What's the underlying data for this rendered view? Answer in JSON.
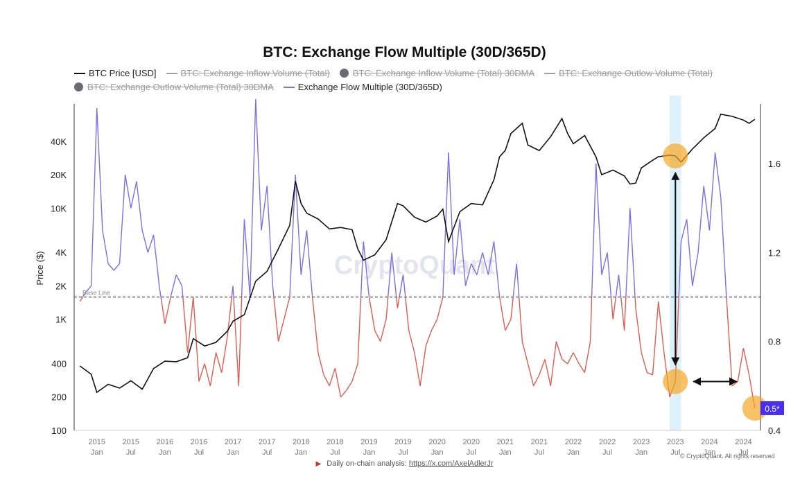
{
  "title": "BTC: Exchange Flow Multiple (30D/365D)",
  "legend": [
    {
      "label": "BTC Price [USD]",
      "marker": "line",
      "color": "#111111",
      "active": true
    },
    {
      "label": "BTC: Exchange Inflow Volume (Total)",
      "marker": "line",
      "color": "#9e9e9e",
      "active": false
    },
    {
      "label": "BTC: Exchange Inflow Volume (Total) 30DMA",
      "marker": "dot",
      "color": "#6b6b74",
      "active": false
    },
    {
      "label": "BTC: Exchange Outlow Volume (Total)",
      "marker": "line",
      "color": "#9e9e9e",
      "active": false
    },
    {
      "label": "BTC: Exchange Outlow Volume (Total) 30DMA",
      "marker": "dot",
      "color": "#6b6b74",
      "active": false
    },
    {
      "label": "Exchange Flow Multiple (30D/365D)",
      "marker": "line",
      "color": "#7b6ee8",
      "active": true
    }
  ],
  "chart_data": {
    "type": "line",
    "title": "BTC: Exchange Flow Multiple (30D/365D)",
    "x_ticks": [
      {
        "year": "2015",
        "sub": "Jan"
      },
      {
        "year": "2015",
        "sub": "Jul"
      },
      {
        "year": "2016",
        "sub": "Jan"
      },
      {
        "year": "2016",
        "sub": "Jul"
      },
      {
        "year": "2017",
        "sub": "Jan"
      },
      {
        "year": "2017",
        "sub": "Jul"
      },
      {
        "year": "2018",
        "sub": "Jan"
      },
      {
        "year": "2018",
        "sub": "Jul"
      },
      {
        "year": "2019",
        "sub": "Jan"
      },
      {
        "year": "2019",
        "sub": "Jul"
      },
      {
        "year": "2020",
        "sub": "Jan"
      },
      {
        "year": "2020",
        "sub": "Jul"
      },
      {
        "year": "2021",
        "sub": "Jan"
      },
      {
        "year": "2021",
        "sub": "Jul"
      },
      {
        "year": "2022",
        "sub": "Jan"
      },
      {
        "year": "2022",
        "sub": "Jul"
      },
      {
        "year": "2023",
        "sub": "Jan"
      },
      {
        "year": "2023",
        "sub": "Jul"
      },
      {
        "year": "2024",
        "sub": "Jan"
      },
      {
        "year": "2024",
        "sub": "Jul"
      }
    ],
    "x_range": [
      "2014-09",
      "2024-10"
    ],
    "y_left": {
      "label": "Price ($)",
      "scale": "log",
      "range": [
        100,
        100000
      ],
      "ticks": [
        "100",
        "200",
        "400",
        "1K",
        "2K",
        "4K",
        "10K",
        "20K",
        "40K"
      ],
      "tick_values": [
        100,
        200,
        400,
        1000,
        2000,
        4000,
        10000,
        20000,
        40000
      ]
    },
    "y_right": {
      "range": [
        0.4,
        1.9
      ],
      "ticks": [
        "0.4",
        "0.8",
        "1.2",
        "1.6"
      ],
      "tick_values": [
        0.4,
        0.8,
        1.2,
        1.6
      ]
    },
    "base_line": {
      "label": "Base Line",
      "value": 1.0
    },
    "current_value_label": "0.5*",
    "series": [
      {
        "name": "BTC Price [USD]",
        "axis": "left",
        "color": "#111111",
        "points": [
          [
            "2014-10",
            380
          ],
          [
            "2014-12",
            320
          ],
          [
            "2015-01",
            220
          ],
          [
            "2015-03",
            260
          ],
          [
            "2015-05",
            240
          ],
          [
            "2015-07",
            280
          ],
          [
            "2015-09",
            235
          ],
          [
            "2015-11",
            360
          ],
          [
            "2016-01",
            420
          ],
          [
            "2016-03",
            415
          ],
          [
            "2016-05",
            450
          ],
          [
            "2016-06",
            670
          ],
          [
            "2016-08",
            575
          ],
          [
            "2016-10",
            620
          ],
          [
            "2016-12",
            780
          ],
          [
            "2017-01",
            960
          ],
          [
            "2017-03",
            1100
          ],
          [
            "2017-05",
            2200
          ],
          [
            "2017-07",
            2700
          ],
          [
            "2017-09",
            4300
          ],
          [
            "2017-11",
            7000
          ],
          [
            "2017-12",
            17500
          ],
          [
            "2018-01",
            11000
          ],
          [
            "2018-02",
            9000
          ],
          [
            "2018-04",
            8000
          ],
          [
            "2018-06",
            6500
          ],
          [
            "2018-08",
            6700
          ],
          [
            "2018-10",
            6400
          ],
          [
            "2018-11",
            4300
          ],
          [
            "2018-12",
            3400
          ],
          [
            "2019-02",
            3800
          ],
          [
            "2019-04",
            5200
          ],
          [
            "2019-06",
            11000
          ],
          [
            "2019-07",
            10500
          ],
          [
            "2019-09",
            8300
          ],
          [
            "2019-11",
            7500
          ],
          [
            "2020-01",
            8500
          ],
          [
            "2020-02",
            9800
          ],
          [
            "2020-03",
            5000
          ],
          [
            "2020-05",
            9300
          ],
          [
            "2020-07",
            11000
          ],
          [
            "2020-09",
            10700
          ],
          [
            "2020-11",
            18000
          ],
          [
            "2020-12",
            29000
          ],
          [
            "2021-01",
            33000
          ],
          [
            "2021-02",
            47000
          ],
          [
            "2021-04",
            58000
          ],
          [
            "2021-05",
            37000
          ],
          [
            "2021-07",
            33000
          ],
          [
            "2021-09",
            44000
          ],
          [
            "2021-11",
            64000
          ],
          [
            "2021-12",
            47000
          ],
          [
            "2022-01",
            38000
          ],
          [
            "2022-03",
            45000
          ],
          [
            "2022-05",
            29000
          ],
          [
            "2022-06",
            20000
          ],
          [
            "2022-08",
            22000
          ],
          [
            "2022-10",
            19500
          ],
          [
            "2022-11",
            16500
          ],
          [
            "2022-12",
            16800
          ],
          [
            "2023-01",
            23000
          ],
          [
            "2023-03",
            27000
          ],
          [
            "2023-04",
            29000
          ],
          [
            "2023-06",
            30000
          ],
          [
            "2023-07",
            29500
          ],
          [
            "2023-08",
            26000
          ],
          [
            "2023-10",
            34000
          ],
          [
            "2023-12",
            43000
          ],
          [
            "2024-02",
            52000
          ],
          [
            "2024-03",
            70000
          ],
          [
            "2024-05",
            67000
          ],
          [
            "2024-07",
            62000
          ],
          [
            "2024-08",
            58000
          ],
          [
            "2024-09",
            63000
          ]
        ]
      },
      {
        "name": "Exchange Flow Multiple (30D/365D)",
        "axis": "right",
        "color_above": "#7b6ee8",
        "color_below": "#e15b4f",
        "points": [
          [
            "2014-10",
            0.98
          ],
          [
            "2014-11",
            1.02
          ],
          [
            "2014-12",
            1.05
          ],
          [
            "2015-01",
            1.85
          ],
          [
            "2015-02",
            1.3
          ],
          [
            "2015-03",
            1.15
          ],
          [
            "2015-04",
            1.12
          ],
          [
            "2015-05",
            1.15
          ],
          [
            "2015-06",
            1.55
          ],
          [
            "2015-07",
            1.4
          ],
          [
            "2015-08",
            1.52
          ],
          [
            "2015-09",
            1.3
          ],
          [
            "2015-10",
            1.2
          ],
          [
            "2015-11",
            1.28
          ],
          [
            "2015-12",
            1.05
          ],
          [
            "2016-01",
            0.88
          ],
          [
            "2016-02",
            1.0
          ],
          [
            "2016-03",
            1.1
          ],
          [
            "2016-04",
            1.05
          ],
          [
            "2016-05",
            0.75
          ],
          [
            "2016-06",
            1.0
          ],
          [
            "2016-07",
            0.62
          ],
          [
            "2016-08",
            0.7
          ],
          [
            "2016-09",
            0.6
          ],
          [
            "2016-10",
            0.75
          ],
          [
            "2016-11",
            0.66
          ],
          [
            "2016-12",
            0.82
          ],
          [
            "2017-01",
            1.05
          ],
          [
            "2017-02",
            0.6
          ],
          [
            "2017-03",
            1.35
          ],
          [
            "2017-04",
            1.0
          ],
          [
            "2017-05",
            1.89
          ],
          [
            "2017-06",
            1.3
          ],
          [
            "2017-07",
            1.5
          ],
          [
            "2017-08",
            1.05
          ],
          [
            "2017-09",
            0.8
          ],
          [
            "2017-10",
            0.9
          ],
          [
            "2017-11",
            1.0
          ],
          [
            "2017-12",
            1.55
          ],
          [
            "2018-01",
            1.1
          ],
          [
            "2018-02",
            1.3
          ],
          [
            "2018-03",
            1.0
          ],
          [
            "2018-04",
            0.75
          ],
          [
            "2018-05",
            0.65
          ],
          [
            "2018-06",
            0.6
          ],
          [
            "2018-07",
            0.68
          ],
          [
            "2018-08",
            0.55
          ],
          [
            "2018-09",
            0.58
          ],
          [
            "2018-10",
            0.62
          ],
          [
            "2018-11",
            0.7
          ],
          [
            "2018-12",
            1.25
          ],
          [
            "2019-01",
            1.0
          ],
          [
            "2019-02",
            0.85
          ],
          [
            "2019-03",
            0.8
          ],
          [
            "2019-04",
            0.9
          ],
          [
            "2019-05",
            1.2
          ],
          [
            "2019-06",
            0.95
          ],
          [
            "2019-07",
            1.1
          ],
          [
            "2019-08",
            0.85
          ],
          [
            "2019-09",
            0.75
          ],
          [
            "2019-10",
            0.6
          ],
          [
            "2019-11",
            0.78
          ],
          [
            "2019-12",
            0.85
          ],
          [
            "2020-01",
            0.9
          ],
          [
            "2020-02",
            1.0
          ],
          [
            "2020-03",
            1.65
          ],
          [
            "2020-04",
            1.1
          ],
          [
            "2020-05",
            1.35
          ],
          [
            "2020-06",
            1.05
          ],
          [
            "2020-07",
            1.15
          ],
          [
            "2020-08",
            1.1
          ],
          [
            "2020-09",
            1.2
          ],
          [
            "2020-10",
            1.1
          ],
          [
            "2020-11",
            1.25
          ],
          [
            "2020-12",
            1.0
          ],
          [
            "2021-01",
            0.85
          ],
          [
            "2021-02",
            0.9
          ],
          [
            "2021-03",
            1.15
          ],
          [
            "2021-04",
            0.8
          ],
          [
            "2021-05",
            0.7
          ],
          [
            "2021-06",
            0.6
          ],
          [
            "2021-07",
            0.65
          ],
          [
            "2021-08",
            0.72
          ],
          [
            "2021-09",
            0.6
          ],
          [
            "2021-10",
            0.8
          ],
          [
            "2021-11",
            0.72
          ],
          [
            "2021-12",
            0.7
          ],
          [
            "2022-01",
            0.75
          ],
          [
            "2022-02",
            0.7
          ],
          [
            "2022-03",
            0.66
          ],
          [
            "2022-04",
            0.8
          ],
          [
            "2022-05",
            1.6
          ],
          [
            "2022-06",
            1.1
          ],
          [
            "2022-07",
            1.2
          ],
          [
            "2022-08",
            0.9
          ],
          [
            "2022-09",
            1.1
          ],
          [
            "2022-10",
            0.85
          ],
          [
            "2022-11",
            1.4
          ],
          [
            "2022-12",
            0.95
          ],
          [
            "2023-01",
            0.75
          ],
          [
            "2023-02",
            0.66
          ],
          [
            "2023-03",
            0.65
          ],
          [
            "2023-04",
            0.98
          ],
          [
            "2023-05",
            0.75
          ],
          [
            "2023-06",
            0.55
          ],
          [
            "2023-07",
            0.62
          ],
          [
            "2023-08",
            1.25
          ],
          [
            "2023-09",
            1.35
          ],
          [
            "2023-10",
            1.05
          ],
          [
            "2023-11",
            1.2
          ],
          [
            "2023-12",
            1.5
          ],
          [
            "2024-01",
            1.3
          ],
          [
            "2024-02",
            1.65
          ],
          [
            "2024-03",
            1.45
          ],
          [
            "2024-04",
            1.0
          ],
          [
            "2024-05",
            0.6
          ],
          [
            "2024-06",
            0.62
          ],
          [
            "2024-07",
            0.77
          ],
          [
            "2024-08",
            0.65
          ],
          [
            "2024-09",
            0.5
          ]
        ]
      }
    ],
    "highlight_band": [
      "2023-06",
      "2023-08"
    ],
    "markers": [
      {
        "series": "BTC Price [USD]",
        "date": "2023-07",
        "color": "#f5a623"
      },
      {
        "series": "Exchange Flow Multiple (30D/365D)",
        "date": "2023-07",
        "color": "#f5a623"
      },
      {
        "series": "Exchange Flow Multiple (30D/365D)",
        "date": "2024-09",
        "color": "#f5a623"
      }
    ]
  },
  "watermark": "CryptoQuant",
  "footer": {
    "text": "Daily on-chain analysis:",
    "link": "https://x.com/AxelAdlerJr"
  },
  "copyright": "© CryptoQuant. All rights reserved"
}
